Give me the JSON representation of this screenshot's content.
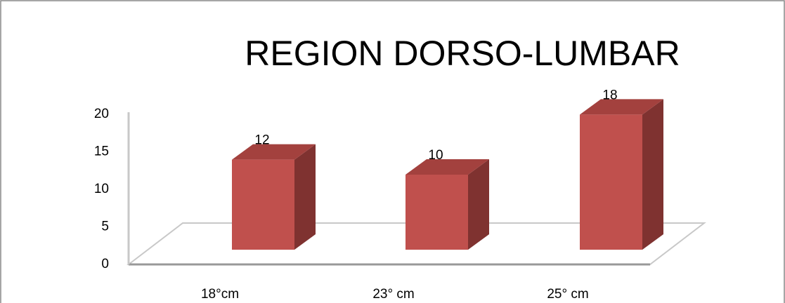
{
  "chart_data": {
    "type": "bar3d",
    "title": "REGION DORSO-LUMBAR",
    "categories": [
      "18°cm",
      "23° cm",
      "25° cm"
    ],
    "values": [
      12,
      10,
      18
    ],
    "color": "#c0504d",
    "ylim": [
      0,
      20
    ],
    "yticks": [
      0,
      5,
      10,
      15,
      20
    ],
    "grid": false
  }
}
